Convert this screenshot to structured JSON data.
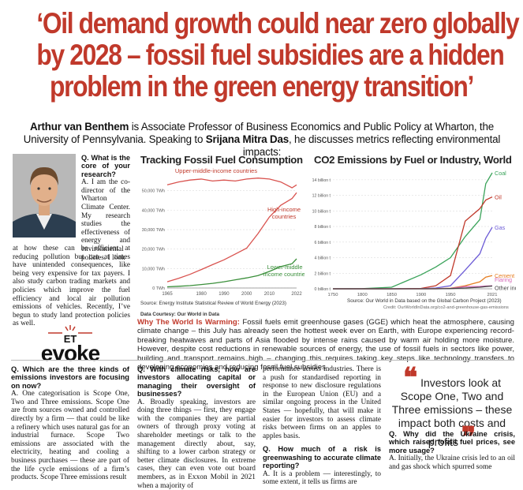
{
  "headline": {
    "line1": "‘Oil demand growth could near zero globally",
    "line2": "by 2028 – fossil fuel subsidies are a hidden",
    "line3": "problem in the green energy transition’"
  },
  "intro": {
    "name": "Arthur van Benthem",
    "text1": " is Associate Professor of Business Economics and Public Policy at Wharton, the University of Pennsylvania. Speaking to ",
    "interviewer": "Srijana Mitra Das",
    "text2": ", he discusses metrics reflecting environmental impacts:"
  },
  "interview_top": {
    "q1": "Q. What is the core of your research?",
    "a1_beside_photo": "A. I am the co-director of the Wharton Climate Center. My research studies the effectiveness of energy and environmental policies. I look",
    "a1_rest": "at how these can be efficient at reducing pollution but can at times have unintended consequences, like being very expensive for tax payers. I also study carbon trading markets and policies which improve the fuel efficiency and local air pollution emissions of vehicles. Recently, I’ve begun to study land protection policies as well."
  },
  "chart1": {
    "title": "Tracking Fossil Fuel Consumption",
    "source": "Source: Energy Institute Statistical Review of World Energy (2023)",
    "courtesy": "Data Courtesy: Our World in Data",
    "chart_data": {
      "type": "line",
      "x": [
        1965,
        1970,
        1975,
        1980,
        1985,
        1990,
        1995,
        2000,
        2005,
        2010,
        2015,
        2020,
        2022
      ],
      "xticks": [
        "1965",
        "1980",
        "1990",
        "2000",
        "2010",
        "2022"
      ],
      "yticks": [
        "0 TWh",
        "10,000 TWh",
        "20,000 TWh",
        "30,000 TWh",
        "40,000 TWh",
        "50,000 TWh"
      ],
      "ylim": [
        0,
        58000
      ],
      "series": [
        {
          "name": "Upper-middle-income countries",
          "color": "#d9534f",
          "values": [
            53000,
            54500,
            55500,
            56000,
            55000,
            55500,
            55000,
            56000,
            56500,
            56000,
            54500,
            51500,
            53000
          ]
        },
        {
          "name": "High-income countries",
          "color": "#d9534f",
          "values": [
            3200,
            5000,
            7000,
            9500,
            12000,
            14500,
            17500,
            20500,
            28000,
            36500,
            42500,
            46000,
            49000
          ]
        },
        {
          "name": "Lower-middle-income countries",
          "color": "#3a8f3a",
          "values": [
            600,
            900,
            1200,
            1800,
            2400,
            3200,
            4200,
            5200,
            6400,
            8500,
            11000,
            12500,
            15000
          ]
        }
      ]
    }
  },
  "chart2": {
    "title": "CO2 Emissions by Fuel or Industry, World",
    "source": "Source: Our World in Data based on the Global Carbon Project (2023)",
    "credit": "Credit: OurWorldInData.org/co2-and-greenhouse-gas-emissions",
    "chart_data": {
      "type": "line",
      "x": [
        1750,
        1800,
        1850,
        1900,
        1925,
        1950,
        1975,
        2000,
        2010,
        2021
      ],
      "xticks": [
        "1750",
        "1800",
        "1850",
        "1900",
        "1950",
        "2021"
      ],
      "yticks": [
        "0 billion t",
        "2 billion t",
        "4 billion t",
        "6 billion t",
        "8 billion t",
        "10 billion t",
        "12 billion t",
        "14 billion t"
      ],
      "ylim": [
        0,
        15
      ],
      "series": [
        {
          "name": "Coal",
          "color": "#3aa35a",
          "values": [
            0,
            0.02,
            0.2,
            1.8,
            2.8,
            4.0,
            6.7,
            8.9,
            13.5,
            14.9
          ]
        },
        {
          "name": "Oil",
          "color": "#c0392b",
          "values": [
            0,
            0,
            0,
            0.05,
            0.4,
            1.7,
            8.7,
            10.3,
            11.4,
            11.8
          ]
        },
        {
          "name": "Gas",
          "color": "#6c5bd6",
          "values": [
            0,
            0,
            0,
            0.01,
            0.1,
            0.4,
            2.4,
            4.5,
            6.5,
            7.9
          ]
        },
        {
          "name": "Cement",
          "color": "#e67e22",
          "values": [
            0,
            0,
            0,
            0,
            0.02,
            0.07,
            0.4,
            0.9,
            1.5,
            1.7
          ]
        },
        {
          "name": "Flaring",
          "color": "#d56ab8",
          "values": [
            0,
            0,
            0,
            0,
            0,
            0.05,
            0.28,
            0.3,
            0.35,
            0.4
          ]
        },
        {
          "name": "Other industry",
          "color": "#444444",
          "values": [
            0,
            0,
            0,
            0,
            0,
            0.03,
            0.1,
            0.2,
            0.28,
            0.35
          ]
        }
      ]
    }
  },
  "why": {
    "label": "Why The World Is Warming:",
    "text": " Fossil fuels emit greenhouse gases (GGE) which heat the atmosphere, causing climate change – this July has already seen the hottest week ever on Earth, with Europe experiencing record-breaking heatwaves and parts of Asia flooded by intense rains caused by warm air holding more moisture. However, despite cost reductions in renewable sources of energy, the use of fossil fuels in sectors like power, building and transport remains high – changing this requires taking key steps like technology transfers to developing economies and reducing fossil fuel subsidies"
  },
  "logo": {
    "top": "ET",
    "main": "evoke"
  },
  "bottom": {
    "c1_q": "Q. Which are the three kinds of emissions investors are focusing on now?",
    "c1_a": "A. One categorisation is Scope One, Two and Three emissions. Scope One are from sources owned and controlled directly by a firm — that could be like a refinery which uses natural gas for an industrial furnace. Scope Two emissions are associated with the electricity, heating and cooling a business purchases — these are part of the life cycle emissions of a firm’s products. Scope Three emissions result",
    "c2_q": "Q. With climate risks, how are investors allocating capital or managing their oversight of businesses?",
    "c2_a": "A. Broadly speaking, investors are doing three things — first, they engage with the companies they are partial owners of through proxy voting at shareholder meetings or talk to the management directly about, say, shifting to a lower carbon strategy or better climate disclosures. In extreme cases, they can even vote out board members, as in Exxon Mobil in 2021 when a majority of",
    "c3_a1": "performance across industries. There is a push for standardised reporting in response to new disclosure regulations in the European Union (EU) and a similar ongoing process in the United States — hopefully, that will make it easier for investors to assess climate risks between firms on an apples to apples basis.",
    "c3_q": "Q. How much of a risk is greenwashing to accurate climate reporting?",
    "c3_a2": "A. It is a problem — interestingly, to some extent, it tells us firms are",
    "pull": "Investors look at Scope One, Two and Three emissions – these impact both costs and profits",
    "c4_q": "Q. Why did the Ukraine crisis, which raised fossil fuel prices, see more usage?",
    "c4_a": "A. Initially, the Ukraine crisis led to an oil and gas shock which spurred some"
  }
}
